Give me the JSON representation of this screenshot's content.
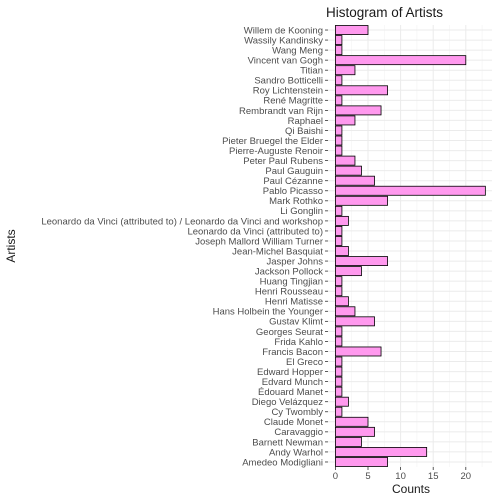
{
  "chart_data": {
    "type": "bar",
    "orientation": "horizontal",
    "title": "Histogram of Artists",
    "xlabel": "Counts",
    "ylabel": "Artists",
    "xlim": [
      0,
      24
    ],
    "x_ticks": [
      0,
      5,
      10,
      15,
      20
    ],
    "grid": true,
    "bar_color": "#ff99ee",
    "bar_stroke": "#000000",
    "grid_color": "#ebebeb",
    "axis_text_color": "#4d4d4d",
    "categories": [
      "Willem de Kooning",
      "Wassily Kandinsky",
      "Wang Meng",
      "Vincent van Gogh",
      "Titian",
      "Sandro Botticelli",
      "Roy Lichtenstein",
      "René Magritte",
      "Rembrandt van Rijn",
      "Raphael",
      "Qi Baishi",
      "Pieter Bruegel the Elder",
      "Pierre-Auguste Renoir",
      "Peter Paul Rubens",
      "Paul Gauguin",
      "Paul Cézanne",
      "Pablo Picasso",
      "Mark Rothko",
      "Li Gonglin",
      "Leonardo da Vinci (attributed to) / Leonardo da Vinci and workshop",
      "Leonardo da Vinci (attributed to)",
      "Joseph Mallord William Turner",
      "Jean-Michel Basquiat",
      "Jasper Johns",
      "Jackson Pollock",
      "Huang Tingjian",
      "Henri Rousseau",
      "Henri Matisse",
      "Hans Holbein the Younger",
      "Gustav Klimt",
      "Georges Seurat",
      "Frida Kahlo",
      "Francis Bacon",
      "El Greco",
      "Edward Hopper",
      "Edvard Munch",
      "Édouard Manet",
      "Diego Velázquez",
      "Cy Twombly",
      "Claude Monet",
      "Caravaggio",
      "Barnett Newman",
      "Andy Warhol",
      "Amedeo Modigliani"
    ],
    "values": [
      5,
      1,
      1,
      20,
      3,
      1,
      8,
      1,
      7,
      3,
      1,
      1,
      1,
      3,
      4,
      6,
      23,
      8,
      1,
      2,
      1,
      1,
      2,
      8,
      4,
      1,
      1,
      2,
      3,
      6,
      1,
      1,
      7,
      1,
      1,
      1,
      1,
      2,
      1,
      5,
      6,
      4,
      14,
      8
    ]
  }
}
